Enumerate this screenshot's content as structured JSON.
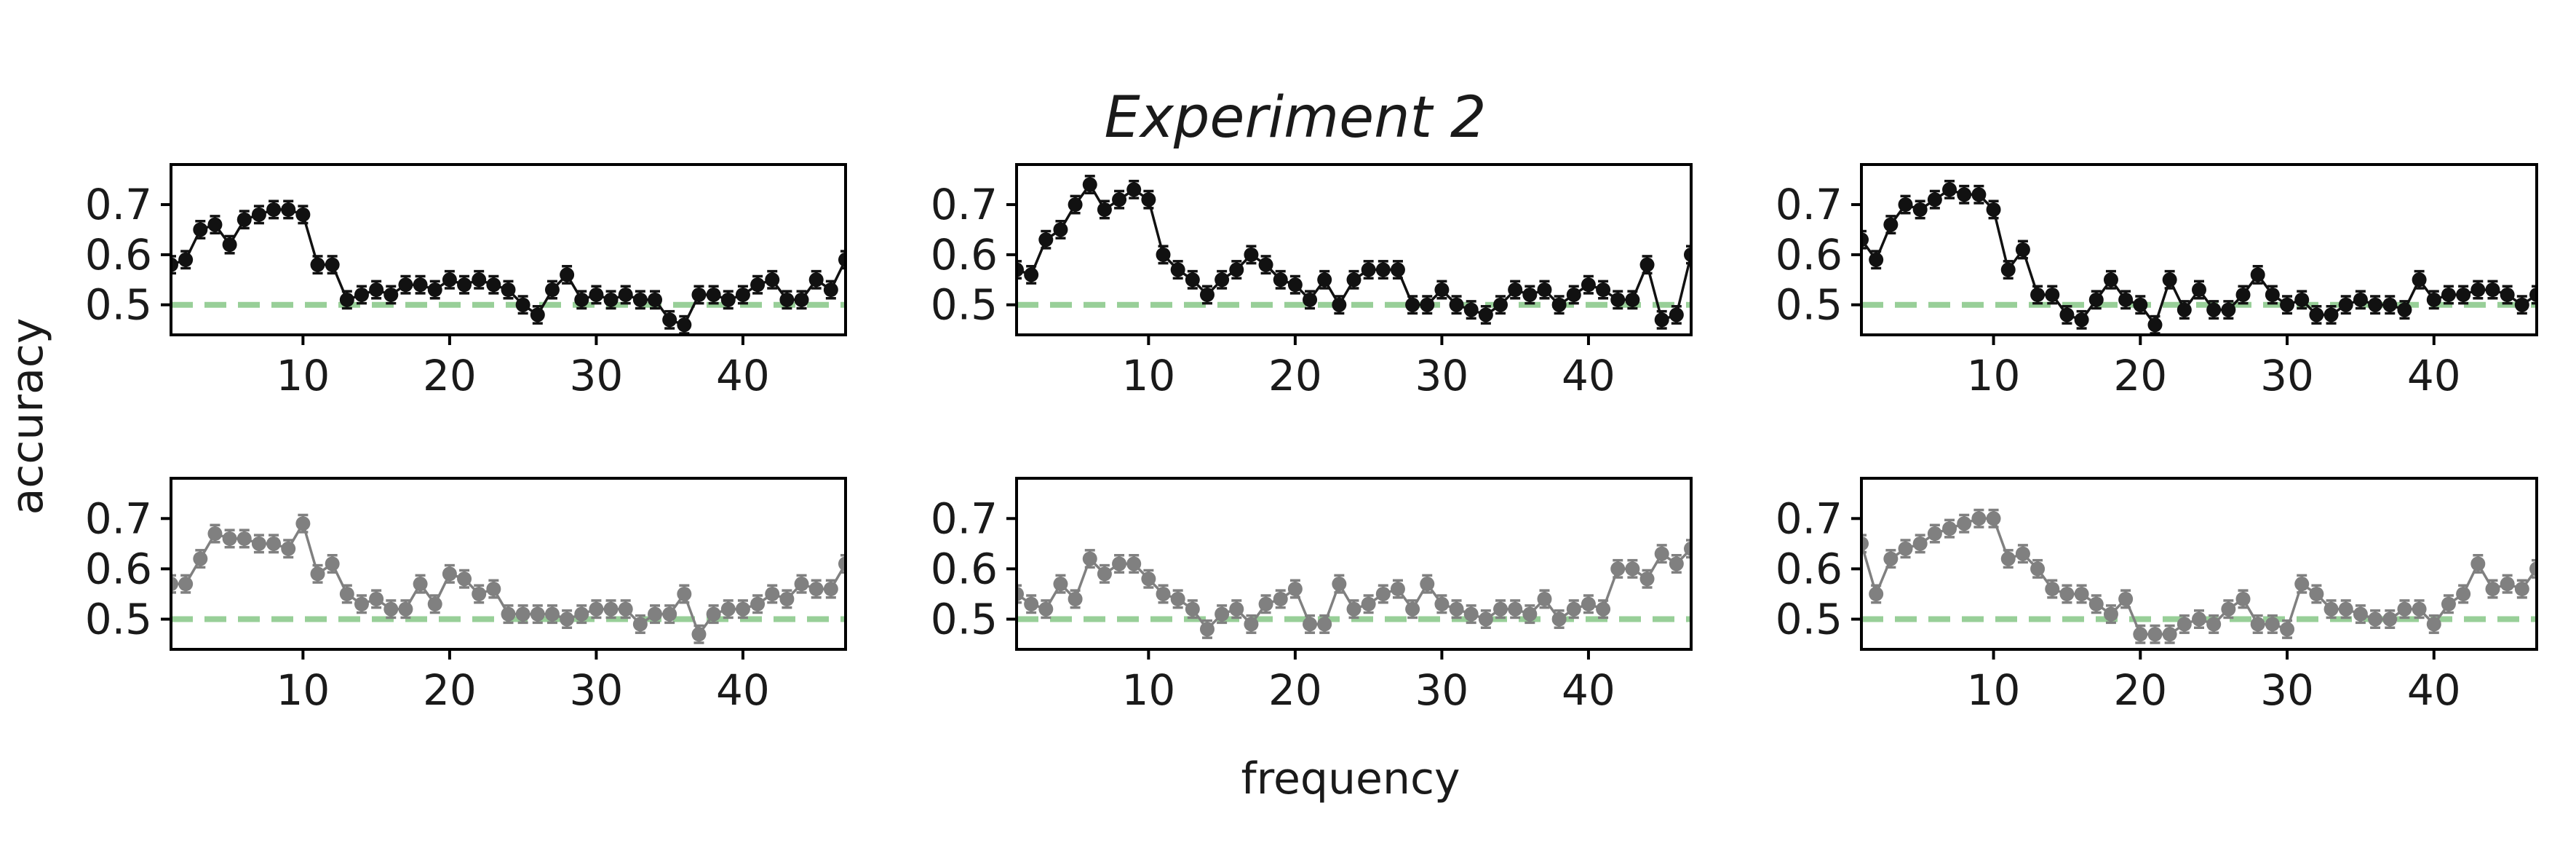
{
  "figure": {
    "title": "Experiment 2",
    "xlabel": "frequency",
    "ylabel": "accuracy"
  },
  "colors": {
    "top_row": "#111111",
    "bottom_row": "#808080",
    "chance_line": "#98cf98",
    "axes": "#000000"
  },
  "chart_data": [
    {
      "type": "line",
      "panel": "top-left",
      "chance": 0.5,
      "xlim": [
        1,
        47
      ],
      "ylim": [
        0.44,
        0.78
      ],
      "xticks": [
        10,
        20,
        30,
        40
      ],
      "yticks": [
        0.5,
        0.6,
        0.7
      ],
      "x": [
        1,
        2,
        3,
        4,
        5,
        6,
        7,
        8,
        9,
        10,
        11,
        12,
        13,
        14,
        15,
        16,
        17,
        18,
        19,
        20,
        21,
        22,
        23,
        24,
        25,
        26,
        27,
        28,
        29,
        30,
        31,
        32,
        33,
        34,
        35,
        36,
        37,
        38,
        39,
        40,
        41,
        42,
        43,
        44,
        45,
        46,
        47
      ],
      "values": [
        0.58,
        0.59,
        0.65,
        0.66,
        0.62,
        0.67,
        0.68,
        0.69,
        0.69,
        0.68,
        0.58,
        0.58,
        0.51,
        0.52,
        0.53,
        0.52,
        0.54,
        0.54,
        0.53,
        0.55,
        0.54,
        0.55,
        0.54,
        0.53,
        0.5,
        0.48,
        0.53,
        0.56,
        0.51,
        0.52,
        0.51,
        0.52,
        0.51,
        0.51,
        0.47,
        0.46,
        0.52,
        0.52,
        0.51,
        0.52,
        0.54,
        0.55,
        0.51,
        0.51,
        0.55,
        0.53,
        0.59
      ],
      "errors": 0.017
    },
    {
      "type": "line",
      "panel": "top-middle",
      "chance": 0.5,
      "xlim": [
        1,
        47
      ],
      "ylim": [
        0.44,
        0.78
      ],
      "xticks": [
        10,
        20,
        30,
        40
      ],
      "yticks": [
        0.5,
        0.6,
        0.7
      ],
      "x": [
        1,
        2,
        3,
        4,
        5,
        6,
        7,
        8,
        9,
        10,
        11,
        12,
        13,
        14,
        15,
        16,
        17,
        18,
        19,
        20,
        21,
        22,
        23,
        24,
        25,
        26,
        27,
        28,
        29,
        30,
        31,
        32,
        33,
        34,
        35,
        36,
        37,
        38,
        39,
        40,
        41,
        42,
        43,
        44,
        45,
        46,
        47
      ],
      "values": [
        0.57,
        0.56,
        0.63,
        0.65,
        0.7,
        0.74,
        0.69,
        0.71,
        0.73,
        0.71,
        0.6,
        0.57,
        0.55,
        0.52,
        0.55,
        0.57,
        0.6,
        0.58,
        0.55,
        0.54,
        0.51,
        0.55,
        0.5,
        0.55,
        0.57,
        0.57,
        0.57,
        0.5,
        0.5,
        0.53,
        0.5,
        0.49,
        0.48,
        0.5,
        0.53,
        0.52,
        0.53,
        0.5,
        0.52,
        0.54,
        0.53,
        0.51,
        0.51,
        0.58,
        0.47,
        0.48,
        0.6
      ],
      "errors": 0.017
    },
    {
      "type": "line",
      "panel": "top-right",
      "chance": 0.5,
      "xlim": [
        1,
        47
      ],
      "ylim": [
        0.44,
        0.78
      ],
      "xticks": [
        10,
        20,
        30,
        40
      ],
      "yticks": [
        0.5,
        0.6,
        0.7
      ],
      "x": [
        1,
        2,
        3,
        4,
        5,
        6,
        7,
        8,
        9,
        10,
        11,
        12,
        13,
        14,
        15,
        16,
        17,
        18,
        19,
        20,
        21,
        22,
        23,
        24,
        25,
        26,
        27,
        28,
        29,
        30,
        31,
        32,
        33,
        34,
        35,
        36,
        37,
        38,
        39,
        40,
        41,
        42,
        43,
        44,
        45,
        46,
        47
      ],
      "values": [
        0.63,
        0.59,
        0.66,
        0.7,
        0.69,
        0.71,
        0.73,
        0.72,
        0.72,
        0.69,
        0.57,
        0.61,
        0.52,
        0.52,
        0.48,
        0.47,
        0.51,
        0.55,
        0.51,
        0.5,
        0.46,
        0.55,
        0.49,
        0.53,
        0.49,
        0.49,
        0.52,
        0.56,
        0.52,
        0.5,
        0.51,
        0.48,
        0.48,
        0.5,
        0.51,
        0.5,
        0.5,
        0.49,
        0.55,
        0.51,
        0.52,
        0.52,
        0.53,
        0.53,
        0.52,
        0.5,
        0.52
      ],
      "errors": 0.017
    },
    {
      "type": "line",
      "panel": "bottom-left",
      "chance": 0.5,
      "xlim": [
        1,
        47
      ],
      "ylim": [
        0.44,
        0.78
      ],
      "xticks": [
        10,
        20,
        30,
        40
      ],
      "yticks": [
        0.5,
        0.6,
        0.7
      ],
      "x": [
        1,
        2,
        3,
        4,
        5,
        6,
        7,
        8,
        9,
        10,
        11,
        12,
        13,
        14,
        15,
        16,
        17,
        18,
        19,
        20,
        21,
        22,
        23,
        24,
        25,
        26,
        27,
        28,
        29,
        30,
        31,
        32,
        33,
        34,
        35,
        36,
        37,
        38,
        39,
        40,
        41,
        42,
        43,
        44,
        45,
        46,
        47
      ],
      "values": [
        0.57,
        0.57,
        0.62,
        0.67,
        0.66,
        0.66,
        0.65,
        0.65,
        0.64,
        0.69,
        0.59,
        0.61,
        0.55,
        0.53,
        0.54,
        0.52,
        0.52,
        0.57,
        0.53,
        0.59,
        0.58,
        0.55,
        0.56,
        0.51,
        0.51,
        0.51,
        0.51,
        0.5,
        0.51,
        0.52,
        0.52,
        0.52,
        0.49,
        0.51,
        0.51,
        0.55,
        0.47,
        0.51,
        0.52,
        0.52,
        0.53,
        0.55,
        0.54,
        0.57,
        0.56,
        0.56,
        0.61
      ],
      "errors": 0.017
    },
    {
      "type": "line",
      "panel": "bottom-middle",
      "chance": 0.5,
      "xlim": [
        1,
        47
      ],
      "ylim": [
        0.44,
        0.78
      ],
      "xticks": [
        10,
        20,
        30,
        40
      ],
      "yticks": [
        0.5,
        0.6,
        0.7
      ],
      "x": [
        1,
        2,
        3,
        4,
        5,
        6,
        7,
        8,
        9,
        10,
        11,
        12,
        13,
        14,
        15,
        16,
        17,
        18,
        19,
        20,
        21,
        22,
        23,
        24,
        25,
        26,
        27,
        28,
        29,
        30,
        31,
        32,
        33,
        34,
        35,
        36,
        37,
        38,
        39,
        40,
        41,
        42,
        43,
        44,
        45,
        46,
        47
      ],
      "values": [
        0.55,
        0.53,
        0.52,
        0.57,
        0.54,
        0.62,
        0.59,
        0.61,
        0.61,
        0.58,
        0.55,
        0.54,
        0.52,
        0.48,
        0.51,
        0.52,
        0.49,
        0.53,
        0.54,
        0.56,
        0.49,
        0.49,
        0.57,
        0.52,
        0.53,
        0.55,
        0.56,
        0.52,
        0.57,
        0.53,
        0.52,
        0.51,
        0.5,
        0.52,
        0.52,
        0.51,
        0.54,
        0.5,
        0.52,
        0.53,
        0.52,
        0.6,
        0.6,
        0.58,
        0.63,
        0.61,
        0.64
      ],
      "errors": 0.017
    },
    {
      "type": "line",
      "panel": "bottom-right",
      "chance": 0.5,
      "xlim": [
        1,
        47
      ],
      "ylim": [
        0.44,
        0.78
      ],
      "xticks": [
        10,
        20,
        30,
        40
      ],
      "yticks": [
        0.5,
        0.6,
        0.7
      ],
      "x": [
        1,
        2,
        3,
        4,
        5,
        6,
        7,
        8,
        9,
        10,
        11,
        12,
        13,
        14,
        15,
        16,
        17,
        18,
        19,
        20,
        21,
        22,
        23,
        24,
        25,
        26,
        27,
        28,
        29,
        30,
        31,
        32,
        33,
        34,
        35,
        36,
        37,
        38,
        39,
        40,
        41,
        42,
        43,
        44,
        45,
        46,
        47
      ],
      "values": [
        0.65,
        0.55,
        0.62,
        0.64,
        0.65,
        0.67,
        0.68,
        0.69,
        0.7,
        0.7,
        0.62,
        0.63,
        0.6,
        0.56,
        0.55,
        0.55,
        0.53,
        0.51,
        0.54,
        0.47,
        0.47,
        0.47,
        0.49,
        0.5,
        0.49,
        0.52,
        0.54,
        0.49,
        0.49,
        0.48,
        0.57,
        0.55,
        0.52,
        0.52,
        0.51,
        0.5,
        0.5,
        0.52,
        0.52,
        0.49,
        0.53,
        0.55,
        0.61,
        0.56,
        0.57,
        0.56,
        0.6
      ],
      "errors": 0.017
    }
  ]
}
